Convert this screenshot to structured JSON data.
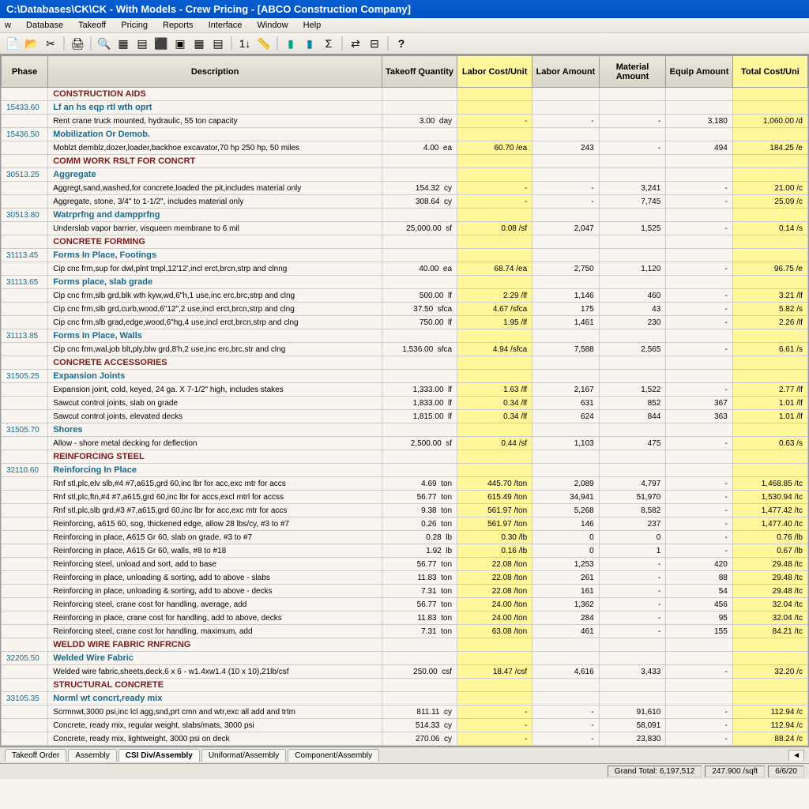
{
  "titlebar": "C:\\Databases\\CK\\CK - With Models - Crew Pricing - [ABCO Construction Company]",
  "menu": [
    "w",
    "Database",
    "Takeoff",
    "Pricing",
    "Reports",
    "Interface",
    "Window",
    "Help"
  ],
  "columns": [
    "Phase",
    "Description",
    "Takeoff Quantity",
    "Labor Cost/Unit",
    "Labor Amount",
    "Material Amount",
    "Equip Amount",
    "Total Cost/Uni"
  ],
  "tabs": [
    "Takeoff Order",
    "Assembly",
    "CSI Div/Assembly",
    "Uniformat/Assembly",
    "Component/Assembly"
  ],
  "status": {
    "grand": "Grand Total: 6,197,512",
    "sqft": "247.900 /sqft",
    "date": "6/6/20"
  },
  "rows": [
    {
      "t": "sect",
      "d": "CONSTRUCTION AIDS"
    },
    {
      "t": "sub",
      "p": "15433.60",
      "d": "Lf an hs eqp rtl wth oprt"
    },
    {
      "t": "item",
      "d": "Rent crane truck mounted, hydraulic, 55 ton capacity",
      "qty": "3.00",
      "u": "day",
      "lcu": "-",
      "la": "-",
      "ma": "-",
      "ea": "3,180",
      "tc": "1,060.00",
      "tu": "/d"
    },
    {
      "t": "sub",
      "p": "15436.50",
      "d": "Mobilization Or Demob."
    },
    {
      "t": "item",
      "d": "Moblzt demblz,dozer,loader,backhoe excavator,70 hp 250 hp, 50 miles",
      "qty": "4.00",
      "u": "ea",
      "lcu": "60.70",
      "lcuu": "/ea",
      "la": "243",
      "ma": "-",
      "ea": "494",
      "tc": "184.25",
      "tu": "/e"
    },
    {
      "t": "sect",
      "d": "COMM WORK RSLT FOR CONCRT"
    },
    {
      "t": "sub",
      "p": "30513.25",
      "d": "Aggregate"
    },
    {
      "t": "item",
      "d": "Aggregt,sand,washed,for concrete,loaded the pit,includes material only",
      "qty": "154.32",
      "u": "cy",
      "lcu": "-",
      "la": "-",
      "ma": "3,241",
      "ea": "-",
      "tc": "21.00",
      "tu": "/c"
    },
    {
      "t": "item",
      "d": "Aggregate, stone, 3/4\" to 1-1/2\", includes material only",
      "qty": "308.64",
      "u": "cy",
      "lcu": "-",
      "la": "-",
      "ma": "7,745",
      "ea": "-",
      "tc": "25.09",
      "tu": "/c"
    },
    {
      "t": "sub",
      "p": "30513.80",
      "d": "Watrprfng and dampprfng"
    },
    {
      "t": "item",
      "d": "Underslab vapor barrier, visqueen membrane to 6 mil",
      "qty": "25,000.00",
      "u": "sf",
      "lcu": "0.08",
      "lcuu": "/sf",
      "la": "2,047",
      "ma": "1,525",
      "ea": "-",
      "tc": "0.14",
      "tu": "/s"
    },
    {
      "t": "sect",
      "d": "CONCRETE FORMING"
    },
    {
      "t": "sub",
      "p": "31113.45",
      "d": "Forms In Place, Footings"
    },
    {
      "t": "item",
      "d": "Cip cnc frm,sup for dwl,plnt tmpl,12'12',incl erct,brcn,strp and clnng",
      "qty": "40.00",
      "u": "ea",
      "lcu": "68.74",
      "lcuu": "/ea",
      "la": "2,750",
      "ma": "1,120",
      "ea": "-",
      "tc": "96.75",
      "tu": "/e"
    },
    {
      "t": "sub",
      "p": "31113.65",
      "d": "Forms place, slab grade"
    },
    {
      "t": "item",
      "d": "Cip cnc frm,slb grd,blk wth kyw,wd,6\"h,1 use,inc erc,brc,strp and clng",
      "qty": "500.00",
      "u": "lf",
      "lcu": "2.29",
      "lcuu": "/lf",
      "la": "1,146",
      "ma": "460",
      "ea": "-",
      "tc": "3.21",
      "tu": "/lf"
    },
    {
      "t": "item",
      "d": "Cip cnc frm,slb grd,curb,wood,6\"12\",2 use,incl erct,brcn,strp and clng",
      "qty": "37.50",
      "u": "sfca",
      "lcu": "4.67",
      "lcuu": "/sfca",
      "la": "175",
      "ma": "43",
      "ea": "-",
      "tc": "5.82",
      "tu": "/s"
    },
    {
      "t": "item",
      "d": "Cip cnc frm,slb grad,edge,wood,6\"hg,4 use,incl erct,brcn,strp and clng",
      "qty": "750.00",
      "u": "lf",
      "lcu": "1.95",
      "lcuu": "/lf",
      "la": "1,461",
      "ma": "230",
      "ea": "-",
      "tc": "2.26",
      "tu": "/lf"
    },
    {
      "t": "sub",
      "p": "31113.85",
      "d": "Forms In Place, Walls"
    },
    {
      "t": "item",
      "d": "Cip cnc frm,wal,job blt,ply,blw grd,8'h,2 use,inc erc,brc,str and clng",
      "qty": "1,536.00",
      "u": "sfca",
      "lcu": "4.94",
      "lcuu": "/sfca",
      "la": "7,588",
      "ma": "2,565",
      "ea": "-",
      "tc": "6.61",
      "tu": "/s"
    },
    {
      "t": "sect",
      "d": "CONCRETE ACCESSORIES"
    },
    {
      "t": "sub",
      "p": "31505.25",
      "d": "Expansion Joints"
    },
    {
      "t": "item",
      "d": "Expansion joint, cold, keyed, 24 ga. X 7-1/2\" high, includes stakes",
      "qty": "1,333.00",
      "u": "lf",
      "lcu": "1.63",
      "lcuu": "/lf",
      "la": "2,167",
      "ma": "1,522",
      "ea": "-",
      "tc": "2.77",
      "tu": "/lf"
    },
    {
      "t": "item",
      "d": "Sawcut control joints, slab on grade",
      "qty": "1,833.00",
      "u": "lf",
      "lcu": "0.34",
      "lcuu": "/lf",
      "la": "631",
      "ma": "852",
      "ea": "367",
      "tc": "1.01",
      "tu": "/lf"
    },
    {
      "t": "item",
      "d": "Sawcut control joints, elevated decks",
      "qty": "1,815.00",
      "u": "lf",
      "lcu": "0.34",
      "lcuu": "/lf",
      "la": "624",
      "ma": "844",
      "ea": "363",
      "tc": "1.01",
      "tu": "/lf"
    },
    {
      "t": "sub",
      "p": "31505.70",
      "d": "Shores"
    },
    {
      "t": "item",
      "d": "Allow - shore metal decking for deflection",
      "qty": "2,500.00",
      "u": "sf",
      "lcu": "0.44",
      "lcuu": "/sf",
      "la": "1,103",
      "ma": "475",
      "ea": "-",
      "tc": "0.63",
      "tu": "/s"
    },
    {
      "t": "sect",
      "d": "REINFORCING STEEL"
    },
    {
      "t": "sub",
      "p": "32110.60",
      "d": "Reinforcing In Place"
    },
    {
      "t": "item",
      "d": "Rnf stl,plc,elv slb,#4 #7,a615,grd 60,inc lbr for acc,exc mtr for accs",
      "qty": "4.69",
      "u": "ton",
      "lcu": "445.70",
      "lcuu": "/ton",
      "la": "2,089",
      "ma": "4,797",
      "ea": "-",
      "tc": "1,468.85",
      "tu": "/tc"
    },
    {
      "t": "item",
      "d": "Rnf stl,plc,ftn,#4 #7,a615,grd 60,inc lbr for accs,excl mtrl for accss",
      "qty": "56.77",
      "u": "ton",
      "lcu": "615.49",
      "lcuu": "/ton",
      "la": "34,941",
      "ma": "51,970",
      "ea": "-",
      "tc": "1,530.94",
      "tu": "/tc"
    },
    {
      "t": "item",
      "d": "Rnf stl,plc,slb grd,#3 #7,a615,grd 60,inc lbr for acc,exc mtr for accs",
      "qty": "9.38",
      "u": "ton",
      "lcu": "561.97",
      "lcuu": "/ton",
      "la": "5,268",
      "ma": "8,582",
      "ea": "-",
      "tc": "1,477.42",
      "tu": "/tc"
    },
    {
      "t": "item",
      "d": "Reinforcing, a615 60, sog, thickened edge, allow 28 lbs/cy, #3 to #7",
      "qty": "0.26",
      "u": "ton",
      "lcu": "561.97",
      "lcuu": "/ton",
      "la": "146",
      "ma": "237",
      "ea": "-",
      "tc": "1,477.40",
      "tu": "/tc"
    },
    {
      "t": "item",
      "d": "Reinforcing in place, A615 Gr 60, slab on grade, #3 to #7",
      "qty": "0.28",
      "u": "lb",
      "lcu": "0.30",
      "lcuu": "/lb",
      "la": "0",
      "ma": "0",
      "ea": "-",
      "tc": "0.76",
      "tu": "/lb"
    },
    {
      "t": "item",
      "d": "Reinforcing in place, A615 Gr 60, walls, #8 to #18",
      "qty": "1.92",
      "u": "lb",
      "lcu": "0.16",
      "lcuu": "/lb",
      "la": "0",
      "ma": "1",
      "ea": "-",
      "tc": "0.67",
      "tu": "/lb"
    },
    {
      "t": "item",
      "d": "Reinforcing steel, unload and sort, add to base",
      "qty": "56.77",
      "u": "ton",
      "lcu": "22.08",
      "lcuu": "/ton",
      "la": "1,253",
      "ma": "-",
      "ea": "420",
      "tc": "29.48",
      "tu": "/tc"
    },
    {
      "t": "item",
      "d": "Reinforcing in place, unloading & sorting, add to above - slabs",
      "qty": "11.83",
      "u": "ton",
      "lcu": "22.08",
      "lcuu": "/ton",
      "la": "261",
      "ma": "-",
      "ea": "88",
      "tc": "29.48",
      "tu": "/tc"
    },
    {
      "t": "item",
      "d": "Reinforcing in place, unloading & sorting, add to above - decks",
      "qty": "7.31",
      "u": "ton",
      "lcu": "22.08",
      "lcuu": "/ton",
      "la": "161",
      "ma": "-",
      "ea": "54",
      "tc": "29.48",
      "tu": "/tc"
    },
    {
      "t": "item",
      "d": "Reinforcing steel, crane cost for handling, average, add",
      "qty": "56.77",
      "u": "ton",
      "lcu": "24.00",
      "lcuu": "/ton",
      "la": "1,362",
      "ma": "-",
      "ea": "456",
      "tc": "32.04",
      "tu": "/tc"
    },
    {
      "t": "item",
      "d": "Reinforcing in place, crane cost for handling, add to above, decks",
      "qty": "11.83",
      "u": "ton",
      "lcu": "24.00",
      "lcuu": "/ton",
      "la": "284",
      "ma": "-",
      "ea": "95",
      "tc": "32.04",
      "tu": "/tc"
    },
    {
      "t": "item",
      "d": "Reinforcing steel, crane cost for handling, maximum, add",
      "qty": "7.31",
      "u": "ton",
      "lcu": "63.08",
      "lcuu": "/ton",
      "la": "461",
      "ma": "-",
      "ea": "155",
      "tc": "84.21",
      "tu": "/tc"
    },
    {
      "t": "sect",
      "d": "WELDD WIRE FABRIC RNFRCNG"
    },
    {
      "t": "sub",
      "p": "32205.50",
      "d": "Welded Wire Fabric"
    },
    {
      "t": "item",
      "d": "Welded wire fabric,sheets,deck,6 x 6 - w1.4xw1.4 (10 x 10),21lb/csf",
      "qty": "250.00",
      "u": "csf",
      "lcu": "18.47",
      "lcuu": "/csf",
      "la": "4,616",
      "ma": "3,433",
      "ea": "-",
      "tc": "32.20",
      "tu": "/c"
    },
    {
      "t": "sect",
      "d": "STRUCTURAL CONCRETE"
    },
    {
      "t": "sub",
      "p": "33105.35",
      "d": "Norml wt concrt,ready mix"
    },
    {
      "t": "item",
      "d": "Scrmnwt,3000 psi,inc lcl agg,snd,prt cmn and wtr,exc all add and trtm",
      "qty": "811.11",
      "u": "cy",
      "lcu": "-",
      "la": "-",
      "ma": "91,610",
      "ea": "-",
      "tc": "112.94",
      "tu": "/c"
    },
    {
      "t": "item",
      "d": "Concrete, ready mix, regular weight, slabs/mats, 3000 psi",
      "qty": "514.33",
      "u": "cy",
      "lcu": "-",
      "la": "-",
      "ma": "58,091",
      "ea": "-",
      "tc": "112.94",
      "tu": "/c"
    },
    {
      "t": "item",
      "d": "Concrete, ready mix, lightweight, 3000 psi on deck",
      "qty": "270.06",
      "u": "cy",
      "lcu": "-",
      "la": "-",
      "ma": "23,830",
      "ea": "-",
      "tc": "88.24",
      "tu": "/c"
    }
  ]
}
